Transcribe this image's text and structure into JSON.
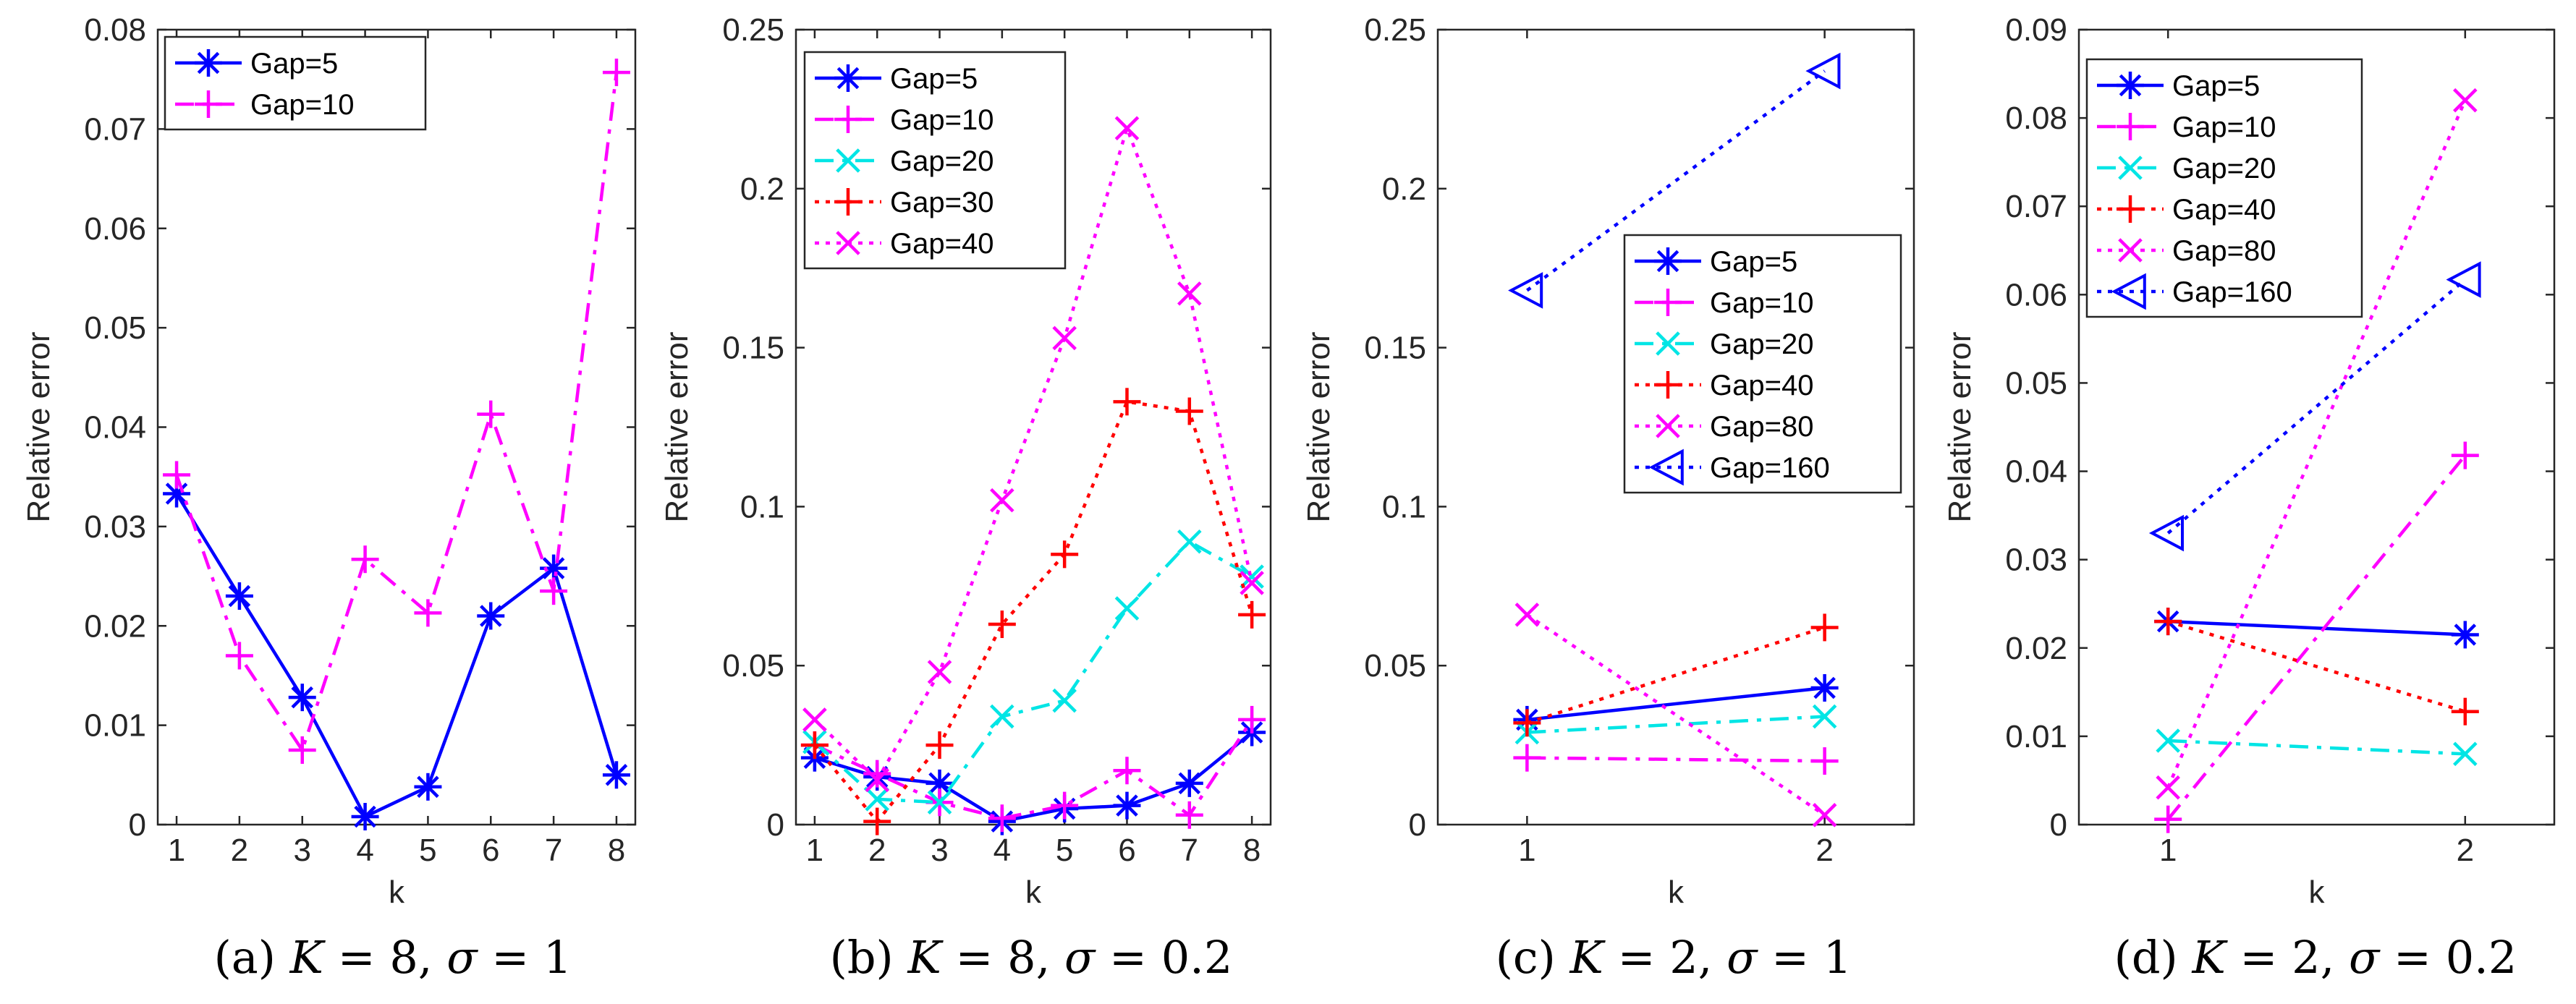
{
  "chart_data": [
    {
      "type": "line",
      "caption_prefix": "(a)",
      "caption_k_label": "K",
      "caption_k_value": "8",
      "caption_sigma_label": "σ",
      "caption_sigma_value": "1",
      "xlabel": "k",
      "ylabel": "Relative error",
      "xlim": [
        0.7,
        8.3
      ],
      "ylim": [
        0,
        0.08
      ],
      "xticks": [
        1,
        2,
        3,
        4,
        5,
        6,
        7,
        8
      ],
      "xtick_labels": [
        "1",
        "2",
        "3",
        "4",
        "5",
        "6",
        "7",
        "8"
      ],
      "yticks": [
        0,
        0.01,
        0.02,
        0.03,
        0.04,
        0.05,
        0.06,
        0.07,
        0.08
      ],
      "ytick_labels": [
        "0",
        "0.01",
        "0.02",
        "0.03",
        "0.04",
        "0.05",
        "0.06",
        "0.07",
        "0.08"
      ],
      "legend_position": "top-left",
      "series": [
        {
          "name": "Gap=5",
          "color": "#0000ff",
          "dash": "solid",
          "marker": "asterisk",
          "x": [
            1,
            2,
            3,
            4,
            5,
            6,
            7,
            8
          ],
          "values": [
            0.0333,
            0.023,
            0.0128,
            0.0008,
            0.0038,
            0.021,
            0.0258,
            0.005
          ]
        },
        {
          "name": "Gap=10",
          "color": "#ff00ff",
          "dash": "dashdot",
          "marker": "plus",
          "x": [
            1,
            2,
            3,
            4,
            5,
            6,
            7,
            8
          ],
          "values": [
            0.0352,
            0.017,
            0.0075,
            0.0267,
            0.0213,
            0.0413,
            0.0235,
            0.0757
          ]
        }
      ]
    },
    {
      "type": "line",
      "caption_prefix": "(b)",
      "caption_k_label": "K",
      "caption_k_value": "8",
      "caption_sigma_label": "σ",
      "caption_sigma_value": "0.2",
      "xlabel": "k",
      "ylabel": "Relative error",
      "xlim": [
        0.7,
        8.3
      ],
      "ylim": [
        0,
        0.25
      ],
      "xticks": [
        1,
        2,
        3,
        4,
        5,
        6,
        7,
        8
      ],
      "xtick_labels": [
        "1",
        "2",
        "3",
        "4",
        "5",
        "6",
        "7",
        "8"
      ],
      "yticks": [
        0,
        0.05,
        0.1,
        0.15,
        0.2,
        0.25
      ],
      "ytick_labels": [
        "0",
        "0.05",
        "0.1",
        "0.15",
        "0.2",
        "0.25"
      ],
      "legend_position": "top-left",
      "series": [
        {
          "name": "Gap=5",
          "color": "#0000ff",
          "dash": "solid",
          "marker": "asterisk",
          "x": [
            1,
            2,
            3,
            4,
            5,
            6,
            7,
            8
          ],
          "values": [
            0.021,
            0.015,
            0.013,
            0.001,
            0.005,
            0.006,
            0.013,
            0.029
          ]
        },
        {
          "name": "Gap=10",
          "color": "#ff00ff",
          "dash": "dashdot",
          "marker": "plus",
          "x": [
            1,
            2,
            3,
            4,
            5,
            6,
            7,
            8
          ],
          "values": [
            0.025,
            0.016,
            0.007,
            0.002,
            0.006,
            0.017,
            0.003,
            0.033
          ]
        },
        {
          "name": "Gap=20",
          "color": "#00e5e5",
          "dash": "dashdot",
          "marker": "x",
          "x": [
            1,
            2,
            3,
            4,
            5,
            6,
            7,
            8
          ],
          "values": [
            0.026,
            0.008,
            0.007,
            0.034,
            0.039,
            0.068,
            0.089,
            0.078
          ]
        },
        {
          "name": "Gap=30",
          "color": "#ff0000",
          "dash": "dotted",
          "marker": "plus",
          "x": [
            1,
            2,
            3,
            4,
            5,
            6,
            7,
            8
          ],
          "values": [
            0.025,
            0.001,
            0.025,
            0.063,
            0.085,
            0.133,
            0.13,
            0.066
          ]
        },
        {
          "name": "Gap=40",
          "color": "#ff00ff",
          "dash": "dotted",
          "marker": "x",
          "x": [
            1,
            2,
            3,
            4,
            5,
            6,
            7,
            8
          ],
          "values": [
            0.033,
            0.014,
            0.048,
            0.102,
            0.153,
            0.219,
            0.167,
            0.076
          ]
        }
      ]
    },
    {
      "type": "line",
      "caption_prefix": "(c)",
      "caption_k_label": "K",
      "caption_k_value": "2",
      "caption_sigma_label": "σ",
      "caption_sigma_value": "1",
      "xlabel": "k",
      "ylabel": "Relative error",
      "xlim": [
        0.7,
        2.3
      ],
      "ylim": [
        0,
        0.25
      ],
      "xticks": [
        1,
        2
      ],
      "xtick_labels": [
        "1",
        "2"
      ],
      "yticks": [
        0,
        0.05,
        0.1,
        0.15,
        0.2,
        0.25
      ],
      "ytick_labels": [
        "0",
        "0.05",
        "0.1",
        "0.15",
        "0.2",
        "0.25"
      ],
      "legend_position": "center-right",
      "series": [
        {
          "name": "Gap=5",
          "color": "#0000ff",
          "dash": "solid",
          "marker": "asterisk",
          "x": [
            1,
            2
          ],
          "values": [
            0.033,
            0.043
          ]
        },
        {
          "name": "Gap=10",
          "color": "#ff00ff",
          "dash": "dashdot",
          "marker": "plus",
          "x": [
            1,
            2
          ],
          "values": [
            0.021,
            0.02
          ]
        },
        {
          "name": "Gap=20",
          "color": "#00e5e5",
          "dash": "dashdot",
          "marker": "x",
          "x": [
            1,
            2
          ],
          "values": [
            0.029,
            0.034
          ]
        },
        {
          "name": "Gap=40",
          "color": "#ff0000",
          "dash": "dotted",
          "marker": "plus",
          "x": [
            1,
            2
          ],
          "values": [
            0.032,
            0.062
          ]
        },
        {
          "name": "Gap=80",
          "color": "#ff00ff",
          "dash": "dotted",
          "marker": "x",
          "x": [
            1,
            2
          ],
          "values": [
            0.066,
            0.003
          ]
        },
        {
          "name": "Gap=160",
          "color": "#0000ff",
          "dash": "dotted",
          "marker": "triangle-left",
          "x": [
            1,
            2
          ],
          "values": [
            0.168,
            0.237
          ]
        }
      ]
    },
    {
      "type": "line",
      "caption_prefix": "(d)",
      "caption_k_label": "K",
      "caption_k_value": "2",
      "caption_sigma_label": "σ",
      "caption_sigma_value": "0.2",
      "xlabel": "k",
      "ylabel": "Relative error",
      "xlim": [
        0.7,
        2.3
      ],
      "ylim": [
        0,
        0.09
      ],
      "xticks": [
        1,
        2
      ],
      "xtick_labels": [
        "1",
        "2"
      ],
      "yticks": [
        0,
        0.01,
        0.02,
        0.03,
        0.04,
        0.05,
        0.06,
        0.07,
        0.08,
        0.09
      ],
      "ytick_labels": [
        "0",
        "0.01",
        "0.02",
        "0.03",
        "0.04",
        "0.05",
        "0.06",
        "0.07",
        "0.08",
        "0.09"
      ],
      "legend_position": "top-left",
      "series": [
        {
          "name": "Gap=5",
          "color": "#0000ff",
          "dash": "solid",
          "marker": "asterisk",
          "x": [
            1,
            2
          ],
          "values": [
            0.023,
            0.0215
          ]
        },
        {
          "name": "Gap=10",
          "color": "#ff00ff",
          "dash": "dashdot",
          "marker": "plus",
          "x": [
            1,
            2
          ],
          "values": [
            0.0006,
            0.0418
          ]
        },
        {
          "name": "Gap=20",
          "color": "#00e5e5",
          "dash": "dashdot",
          "marker": "x",
          "x": [
            1,
            2
          ],
          "values": [
            0.0095,
            0.008
          ]
        },
        {
          "name": "Gap=40",
          "color": "#ff0000",
          "dash": "dotted",
          "marker": "plus",
          "x": [
            1,
            2
          ],
          "values": [
            0.023,
            0.0128
          ]
        },
        {
          "name": "Gap=80",
          "color": "#ff00ff",
          "dash": "dotted",
          "marker": "x",
          "x": [
            1,
            2
          ],
          "values": [
            0.0042,
            0.082
          ]
        },
        {
          "name": "Gap=160",
          "color": "#0000ff",
          "dash": "dotted",
          "marker": "triangle-left",
          "x": [
            1,
            2
          ],
          "values": [
            0.033,
            0.0617
          ]
        }
      ]
    }
  ]
}
